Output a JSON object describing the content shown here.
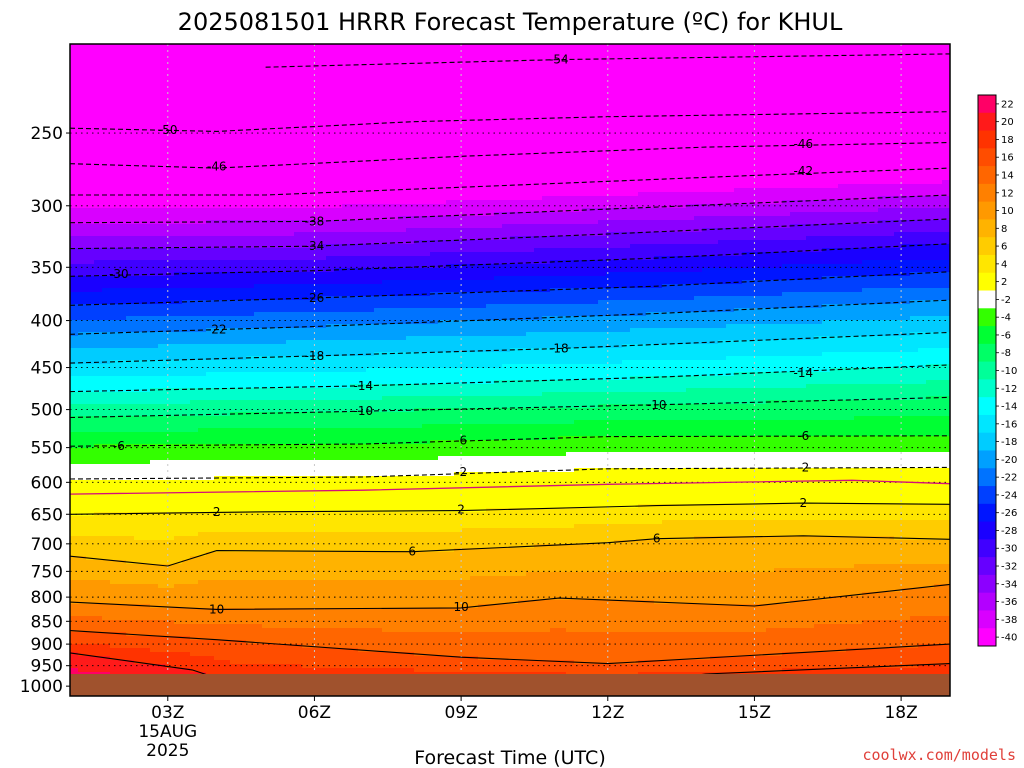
{
  "chart_data": {
    "type": "heatmap",
    "title": "2025081501 HRRR Forecast Temperature (ºC) for KHUL",
    "xlabel": "Forecast Time (UTC)",
    "ylabel": "",
    "x_range_hours": [
      1,
      19
    ],
    "y_range_hpa": [
      1025,
      200
    ],
    "y_scale": "log",
    "x_ticks": [
      {
        "hour": 3,
        "label": "03Z",
        "sub": [
          "15AUG",
          "2025"
        ]
      },
      {
        "hour": 6,
        "label": "06Z",
        "sub": []
      },
      {
        "hour": 9,
        "label": "09Z",
        "sub": []
      },
      {
        "hour": 12,
        "label": "12Z",
        "sub": []
      },
      {
        "hour": 15,
        "label": "15Z",
        "sub": []
      },
      {
        "hour": 18,
        "label": "18Z",
        "sub": []
      }
    ],
    "y_ticks": [
      250,
      300,
      350,
      400,
      450,
      500,
      550,
      600,
      650,
      700,
      750,
      800,
      850,
      900,
      950,
      1000
    ],
    "y_tick_labels": [
      "250",
      "300",
      "350",
      "400",
      "450",
      "500",
      "550",
      "600",
      "650",
      "700",
      "750",
      "800",
      "850",
      "900",
      "950",
      "1000"
    ],
    "grid": true,
    "ground_color": "#a0522d",
    "colorbar": {
      "levels": [
        -40,
        -38,
        -36,
        -34,
        -32,
        -30,
        -28,
        -26,
        -24,
        -22,
        -20,
        -18,
        -16,
        -14,
        -12,
        -10,
        -8,
        -6,
        -4,
        -2,
        2,
        4,
        6,
        8,
        10,
        12,
        14,
        16,
        18,
        20,
        22
      ],
      "labels": [
        "22",
        "20",
        "18",
        "16",
        "14",
        "12",
        "10",
        "8",
        "6",
        "4",
        "2",
        "-2",
        "-4",
        "-6",
        "-8",
        "-10",
        "-12",
        "-14",
        "-16",
        "-18",
        "-20",
        "-22",
        "-24",
        "-26",
        "-28",
        "-30",
        "-32",
        "-34",
        "-36",
        "-38",
        "-40"
      ],
      "colors_top_to_bottom": [
        "#ff0066",
        "#ff1a1a",
        "#ff3300",
        "#ff4d00",
        "#ff6600",
        "#ff8000",
        "#ff9900",
        "#ffb300",
        "#ffcc00",
        "#ffe600",
        "#ffff00",
        "#ffffff",
        "#33ff00",
        "#00ff33",
        "#00ff66",
        "#00ff99",
        "#00ffcc",
        "#00ffff",
        "#00e6ff",
        "#00ccff",
        "#00a0ff",
        "#0073ff",
        "#0040ff",
        "#0015ff",
        "#1a00ff",
        "#4000ff",
        "#6600ff",
        "#8c00ff",
        "#b300ff",
        "#d900ff",
        "#ff00ff"
      ]
    },
    "isotherms": [
      {
        "value": -54,
        "label": "-54",
        "points": [
          [
            5,
            212
          ],
          [
            11,
            208
          ],
          [
            19,
            205
          ]
        ]
      },
      {
        "value": -50,
        "label": "-50",
        "points": [
          [
            1,
            247
          ],
          [
            4,
            249
          ],
          [
            8,
            243
          ],
          [
            12,
            240
          ],
          [
            19,
            237
          ]
        ]
      },
      {
        "value": -46,
        "label": "-46",
        "points": [
          [
            1,
            270
          ],
          [
            4,
            273
          ],
          [
            9,
            265
          ],
          [
            14,
            259
          ],
          [
            19,
            256
          ]
        ]
      },
      {
        "value": -42,
        "label": "-42",
        "points": [
          [
            1,
            292
          ],
          [
            5,
            292
          ],
          [
            10,
            285
          ],
          [
            15,
            278
          ],
          [
            19,
            273
          ]
        ]
      },
      {
        "value": -38,
        "label": "-38",
        "points": [
          [
            1,
            313
          ],
          [
            6,
            312
          ],
          [
            11,
            304
          ],
          [
            19,
            292
          ]
        ]
      },
      {
        "value": -34,
        "label": "-34",
        "points": [
          [
            1,
            334
          ],
          [
            6,
            332
          ],
          [
            12,
            322
          ],
          [
            19,
            310
          ]
        ]
      },
      {
        "value": -30,
        "label": "-30",
        "points": [
          [
            1,
            358
          ],
          [
            6,
            353
          ],
          [
            13,
            342
          ],
          [
            19,
            330
          ]
        ]
      },
      {
        "value": -26,
        "label": "-26",
        "points": [
          [
            1,
            385
          ],
          [
            6,
            378
          ],
          [
            13,
            367
          ],
          [
            19,
            354
          ]
        ]
      },
      {
        "value": -22,
        "label": "-22",
        "points": [
          [
            1,
            414
          ],
          [
            6,
            406
          ],
          [
            13,
            393
          ],
          [
            19,
            380
          ]
        ]
      },
      {
        "value": -18,
        "label": "-18",
        "points": [
          [
            1,
            445
          ],
          [
            6,
            437
          ],
          [
            11,
            429
          ],
          [
            19,
            412
          ]
        ]
      },
      {
        "value": -14,
        "label": "-14",
        "points": [
          [
            1,
            478
          ],
          [
            7,
            471
          ],
          [
            13,
            461
          ],
          [
            19,
            447
          ]
        ]
      },
      {
        "value": -10,
        "label": "-10",
        "points": [
          [
            1,
            510
          ],
          [
            7,
            502
          ],
          [
            13,
            494
          ],
          [
            19,
            485
          ]
        ]
      },
      {
        "value": -6,
        "label": "-6",
        "points": [
          [
            1,
            548
          ],
          [
            7,
            545
          ],
          [
            12,
            535
          ],
          [
            19,
            534
          ]
        ]
      },
      {
        "value": -2,
        "label": "-2",
        "points": [
          [
            1,
            595
          ],
          [
            7,
            592
          ],
          [
            12,
            580
          ],
          [
            19,
            578
          ]
        ]
      },
      {
        "value": 0,
        "label": "",
        "points": [
          [
            1,
            618
          ],
          [
            7,
            612
          ],
          [
            12,
            603
          ],
          [
            17,
            597
          ],
          [
            19,
            602
          ]
        ]
      },
      {
        "value": 2,
        "label": "2",
        "points": [
          [
            1,
            650
          ],
          [
            5,
            646
          ],
          [
            9,
            644
          ],
          [
            13,
            636
          ],
          [
            16,
            632
          ],
          [
            19,
            634
          ]
        ]
      },
      {
        "value": 6,
        "label": "6",
        "points": [
          [
            1,
            722
          ],
          [
            3,
            740
          ],
          [
            4,
            712
          ],
          [
            8,
            714
          ],
          [
            12,
            698
          ],
          [
            13,
            691
          ],
          [
            16,
            686
          ],
          [
            19,
            692
          ]
        ]
      },
      {
        "value": 10,
        "label": "10",
        "points": [
          [
            1,
            810
          ],
          [
            4,
            825
          ],
          [
            9,
            822
          ],
          [
            11,
            802
          ],
          [
            15,
            818
          ],
          [
            19,
            775
          ]
        ]
      },
      {
        "value": 14,
        "label": "14",
        "points": [
          [
            1,
            870
          ],
          [
            4,
            890
          ],
          [
            9,
            930
          ],
          [
            12,
            945
          ],
          [
            19,
            900
          ]
        ]
      },
      {
        "value": 18,
        "label": "18",
        "points": [
          [
            1,
            920
          ],
          [
            3.5,
            960
          ],
          [
            4.5,
            1000
          ]
        ]
      },
      {
        "value": 18,
        "label": "",
        "points": [
          [
            12,
            1000
          ],
          [
            14,
            970
          ],
          [
            19,
            945
          ]
        ]
      }
    ],
    "isotherm_labels": [
      {
        "text": "-54",
        "hour": 11,
        "hpa": 208
      },
      {
        "text": "-50",
        "hour": 3,
        "hpa": 248
      },
      {
        "text": "-46",
        "hour": 4,
        "hpa": 272
      },
      {
        "text": "-46",
        "hour": 16,
        "hpa": 257
      },
      {
        "text": "-42",
        "hour": 16,
        "hpa": 275
      },
      {
        "text": "-38",
        "hour": 6,
        "hpa": 312
      },
      {
        "text": "-34",
        "hour": 6,
        "hpa": 332
      },
      {
        "text": "-30",
        "hour": 2,
        "hpa": 356
      },
      {
        "text": "-26",
        "hour": 6,
        "hpa": 378
      },
      {
        "text": "-22",
        "hour": 4,
        "hpa": 409
      },
      {
        "text": "-18",
        "hour": 6,
        "hpa": 437
      },
      {
        "text": "-18",
        "hour": 11,
        "hpa": 429
      },
      {
        "text": "-14",
        "hour": 7,
        "hpa": 471
      },
      {
        "text": "-14",
        "hour": 16,
        "hpa": 456
      },
      {
        "text": "-10",
        "hour": 7,
        "hpa": 502
      },
      {
        "text": "-10",
        "hour": 13,
        "hpa": 494
      },
      {
        "text": "-6",
        "hour": 2,
        "hpa": 548
      },
      {
        "text": "-6",
        "hour": 9,
        "hpa": 540
      },
      {
        "text": "-6",
        "hour": 16,
        "hpa": 534
      },
      {
        "text": "-2",
        "hour": 9,
        "hpa": 585
      },
      {
        "text": "-2",
        "hour": 16,
        "hpa": 578
      },
      {
        "text": "2",
        "hour": 4,
        "hpa": 646
      },
      {
        "text": "2",
        "hour": 9,
        "hpa": 642
      },
      {
        "text": "2",
        "hour": 16,
        "hpa": 632
      },
      {
        "text": "6",
        "hour": 8,
        "hpa": 714
      },
      {
        "text": "6",
        "hour": 13,
        "hpa": 691
      },
      {
        "text": "10",
        "hour": 4,
        "hpa": 825
      },
      {
        "text": "10",
        "hour": 9,
        "hpa": 820
      }
    ]
  },
  "credit": "coolwx.com/models"
}
